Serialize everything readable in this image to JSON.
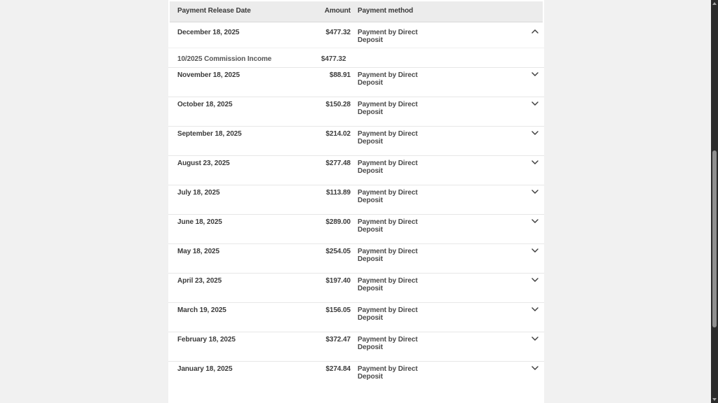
{
  "page": {
    "background_color": "#f1f1f1",
    "content_background_color": "#ffffff",
    "header_background_color": "#ececec",
    "scrollbar_track_color": "#2b2b2b",
    "scrollbar_thumb_color": "#8f8f8f"
  },
  "table": {
    "headers": {
      "date": "Payment Release Date",
      "amount": "Amount",
      "method": "Payment method"
    },
    "rows": [
      {
        "date": "December 18, 2025",
        "amount": "$477.32",
        "method": "Payment by Direct\nDeposit",
        "expanded": true,
        "details": [
          {
            "description": "10/2025 Commission Income",
            "amount": "$477.32"
          }
        ]
      },
      {
        "date": "November 18, 2025",
        "amount": "$88.91",
        "method": "Payment by Direct\nDeposit",
        "expanded": false,
        "details": []
      },
      {
        "date": "October 18, 2025",
        "amount": "$150.28",
        "method": "Payment by Direct\nDeposit",
        "expanded": false,
        "details": []
      },
      {
        "date": "September 18, 2025",
        "amount": "$214.02",
        "method": "Payment by Direct\nDeposit",
        "expanded": false,
        "details": []
      },
      {
        "date": "August 23, 2025",
        "amount": "$277.48",
        "method": "Payment by Direct\nDeposit",
        "expanded": false,
        "details": []
      },
      {
        "date": "July 18, 2025",
        "amount": "$113.89",
        "method": "Payment by Direct\nDeposit",
        "expanded": false,
        "details": []
      },
      {
        "date": "June 18, 2025",
        "amount": "$289.00",
        "method": "Payment by Direct\nDeposit",
        "expanded": false,
        "details": []
      },
      {
        "date": "May 18, 2025",
        "amount": "$254.05",
        "method": "Payment by Direct\nDeposit",
        "expanded": false,
        "details": []
      },
      {
        "date": "April 23, 2025",
        "amount": "$197.40",
        "method": "Payment by Direct\nDeposit",
        "expanded": false,
        "details": []
      },
      {
        "date": "March 19, 2025",
        "amount": "$156.05",
        "method": "Payment by Direct\nDeposit",
        "expanded": false,
        "details": []
      },
      {
        "date": "February 18, 2025",
        "amount": "$372.47",
        "method": "Payment by Direct\nDeposit",
        "expanded": false,
        "details": []
      },
      {
        "date": "January 18, 2025",
        "amount": "$274.84",
        "method": "Payment by Direct\nDeposit",
        "expanded": false,
        "details": []
      }
    ]
  },
  "icons": {
    "collapse": "chevron-up-icon",
    "expand": "chevron-down-icon",
    "scroll_up": "scroll-up-arrow-icon",
    "scroll_down": "scroll-down-arrow-icon"
  }
}
